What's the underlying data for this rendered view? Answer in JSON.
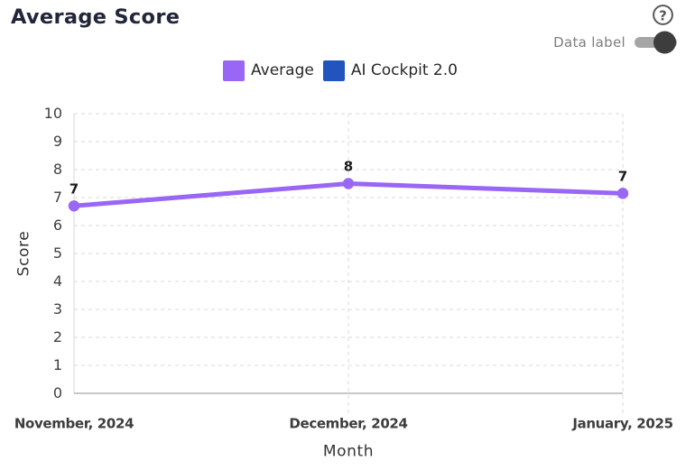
{
  "header": {
    "title": "Average Score",
    "toggle": {
      "label": "Data label",
      "state": "on"
    }
  },
  "icons": {
    "help_glyph": "?"
  },
  "legend": [
    {
      "label": "Average",
      "color": "#9966f5"
    },
    {
      "label": "AI Cockpit 2.0",
      "color": "#2154bd"
    }
  ],
  "chart_data": {
    "type": "line",
    "title": "Average Score",
    "categories": [
      "November, 2024",
      "December, 2024",
      "January, 2025"
    ],
    "series": [
      {
        "name": "Average",
        "color": "#9966f5",
        "values": [
          6.7,
          7.5,
          7.15
        ],
        "point_labels": [
          "7",
          "8",
          "7"
        ]
      },
      {
        "name": "AI Cockpit 2.0",
        "color": "#2154bd",
        "values": [],
        "point_labels": []
      }
    ],
    "xlabel": "Month",
    "ylabel": "Score",
    "ylim": [
      0,
      10
    ],
    "yticks": [
      0,
      1,
      2,
      3,
      4,
      5,
      6,
      7,
      8,
      9,
      10
    ],
    "grid": true,
    "grid_style": "dashed",
    "legend_position": "top",
    "data_labels_visible": true
  },
  "colors": {
    "title": "#23263a",
    "grid": "#d9d9d9",
    "x_axis": "#8f8f8f",
    "y_axis": "#d9d9d9",
    "help": "#58585a"
  }
}
